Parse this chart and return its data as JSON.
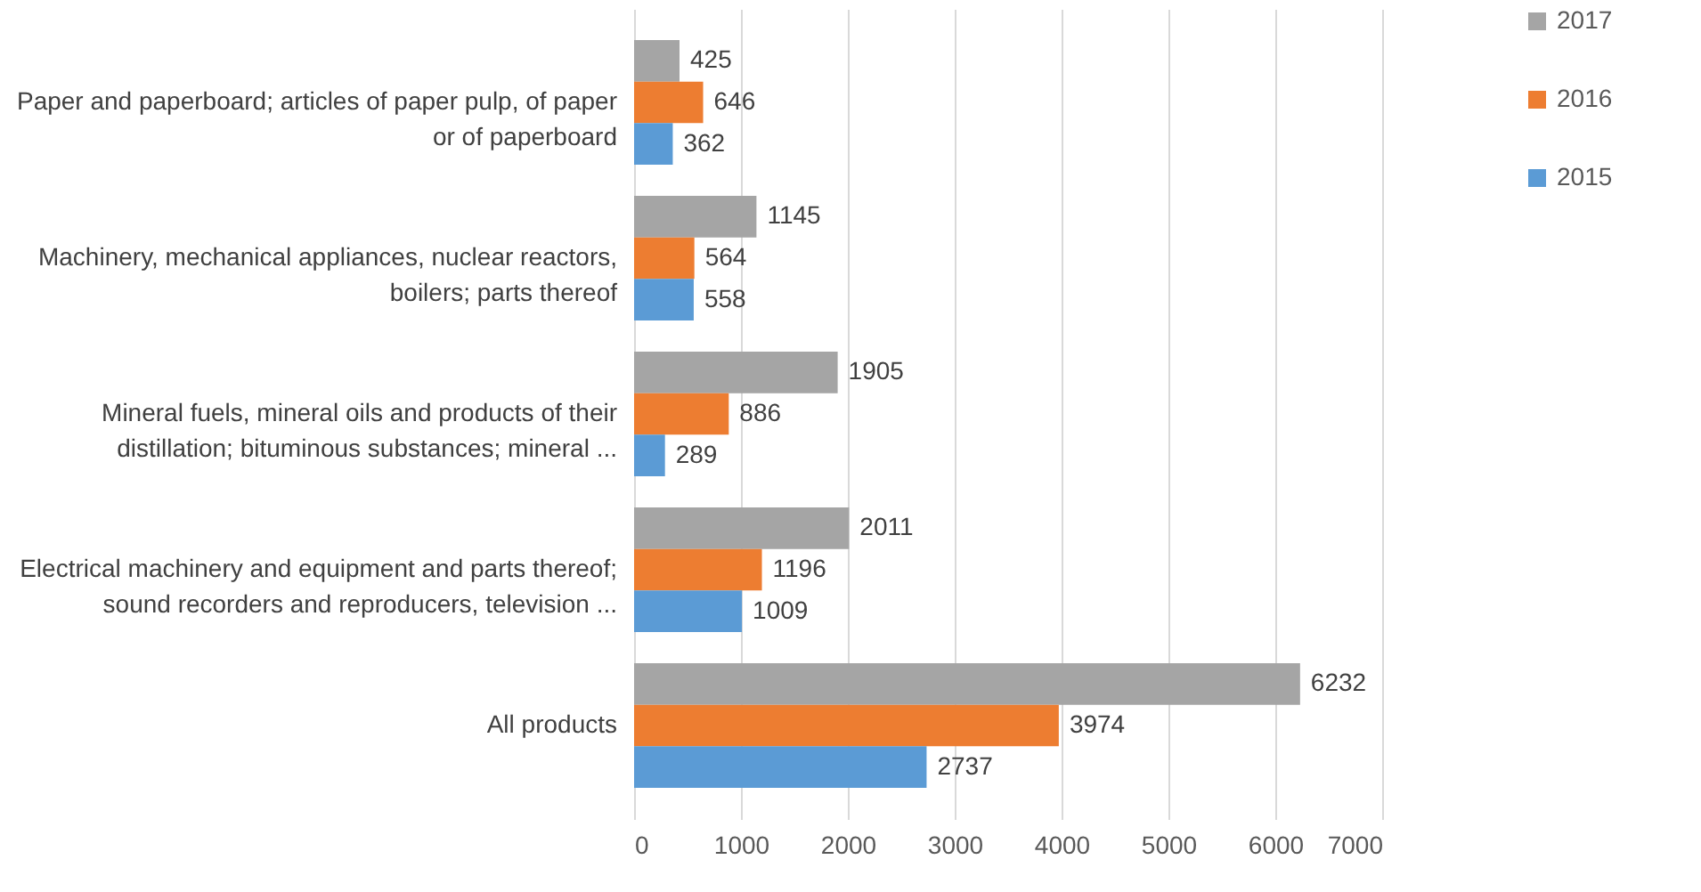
{
  "chart_data": {
    "type": "bar",
    "orientation": "horizontal",
    "categories": [
      "Paper and paperboard; articles of paper pulp, of paper or of paperboard",
      "Machinery, mechanical appliances, nuclear reactors, boilers; parts thereof",
      "Mineral fuels, mineral oils and products of their distillation; bituminous substances; mineral ...",
      "Electrical machinery and equipment and parts thereof; sound recorders and reproducers, television ...",
      "All products"
    ],
    "series": [
      {
        "name": "2017",
        "color": "#a5a5a5",
        "values": [
          425,
          1145,
          1905,
          2011,
          6232
        ]
      },
      {
        "name": "2016",
        "color": "#ed7d31",
        "values": [
          646,
          564,
          886,
          1196,
          3974
        ]
      },
      {
        "name": "2015",
        "color": "#5b9bd5",
        "values": [
          362,
          558,
          289,
          1009,
          2737
        ]
      }
    ],
    "xlim": [
      0,
      7000
    ],
    "xticks": [
      0,
      1000,
      2000,
      3000,
      4000,
      5000,
      6000,
      7000
    ],
    "grid": "x",
    "legend": "right",
    "data_labels": true
  }
}
